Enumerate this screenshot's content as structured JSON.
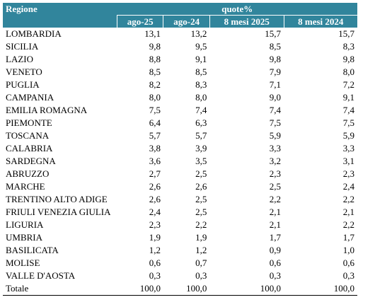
{
  "table": {
    "header": {
      "region": "Regione",
      "group": "quote%",
      "columns": [
        "ago-25",
        "ago-24",
        "8 mesi 2025",
        "8 mesi 2024"
      ]
    },
    "rows": [
      [
        "LOMBARDIA",
        "13,1",
        "13,2",
        "15,7",
        "15,7"
      ],
      [
        "SICILIA",
        "9,8",
        "9,5",
        "8,5",
        "8,3"
      ],
      [
        "LAZIO",
        "8,8",
        "9,1",
        "9,8",
        "9,8"
      ],
      [
        "VENETO",
        "8,5",
        "8,5",
        "7,9",
        "8,0"
      ],
      [
        "PUGLIA",
        "8,2",
        "8,3",
        "7,1",
        "7,2"
      ],
      [
        "CAMPANIA",
        "8,0",
        "8,0",
        "9,0",
        "9,1"
      ],
      [
        "EMILIA ROMAGNA",
        "7,5",
        "7,4",
        "7,4",
        "7,4"
      ],
      [
        "PIEMONTE",
        "6,4",
        "6,3",
        "7,5",
        "7,5"
      ],
      [
        "TOSCANA",
        "5,7",
        "5,7",
        "5,9",
        "5,9"
      ],
      [
        "CALABRIA",
        "3,8",
        "3,9",
        "3,3",
        "3,3"
      ],
      [
        "SARDEGNA",
        "3,6",
        "3,5",
        "3,2",
        "3,1"
      ],
      [
        "ABRUZZO",
        "2,7",
        "2,5",
        "2,3",
        "2,3"
      ],
      [
        "MARCHE",
        "2,6",
        "2,6",
        "2,5",
        "2,4"
      ],
      [
        "TRENTINO ALTO ADIGE",
        "2,6",
        "2,5",
        "2,2",
        "2,2"
      ],
      [
        "FRIULI VENEZIA GIULIA",
        "2,4",
        "2,5",
        "2,1",
        "2,1"
      ],
      [
        "LIGURIA",
        "2,3",
        "2,2",
        "2,1",
        "2,2"
      ],
      [
        "UMBRIA",
        "1,9",
        "1,9",
        "1,7",
        "1,7"
      ],
      [
        "BASILICATA",
        "1,2",
        "1,2",
        "0,9",
        "1,0"
      ],
      [
        "MOLISE",
        "0,6",
        "0,7",
        "0,6",
        "0,6"
      ],
      [
        "VALLE D'AOSTA",
        "0,3",
        "0,3",
        "0,3",
        "0,3"
      ],
      [
        "Totale",
        "100,0",
        "100,0",
        "100,0",
        "100,0"
      ]
    ]
  }
}
